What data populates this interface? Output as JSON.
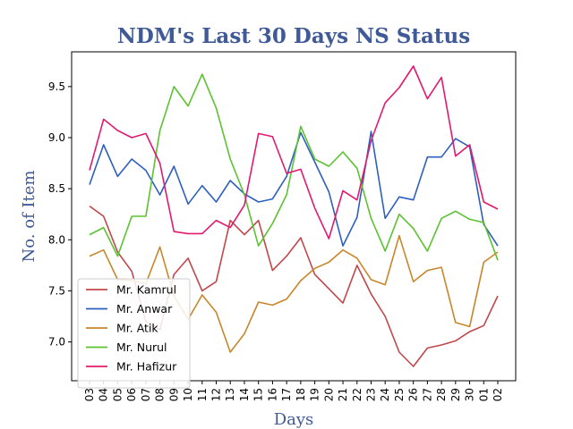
{
  "chart_data": {
    "type": "line",
    "title": "NDM's Last 30 Days NS Status",
    "xlabel": "Days",
    "ylabel": "No. of Item",
    "title_color": "#3f5a96",
    "categories": [
      "03",
      "04",
      "05",
      "06",
      "07",
      "08",
      "09",
      "10",
      "11",
      "12",
      "13",
      "14",
      "15",
      "16",
      "17",
      "18",
      "19",
      "20",
      "21",
      "22",
      "23",
      "24",
      "25",
      "26",
      "27",
      "28",
      "29",
      "30",
      "01",
      "02"
    ],
    "ylim": [
      6.62,
      9.84
    ],
    "yticks": [
      "7.0",
      "7.5",
      "8.0",
      "8.5",
      "9.0",
      "9.5"
    ],
    "legend_position": "lower-left",
    "series": [
      {
        "name": "Mr. Kamrul",
        "color": "#c0474a",
        "values": [
          8.33,
          8.23,
          7.88,
          7.69,
          7.2,
          7.12,
          7.66,
          7.82,
          7.5,
          7.59,
          8.19,
          8.05,
          8.19,
          7.7,
          7.84,
          8.02,
          7.66,
          7.52,
          7.38,
          7.75,
          7.47,
          7.25,
          6.9,
          6.76,
          6.94,
          6.97,
          7.01,
          7.1,
          7.16,
          7.45
        ]
      },
      {
        "name": "Mr. Anwar",
        "color": "#2d5fbf",
        "values": [
          8.54,
          8.93,
          8.62,
          8.79,
          8.68,
          8.44,
          8.72,
          8.35,
          8.53,
          8.37,
          8.58,
          8.45,
          8.37,
          8.4,
          8.62,
          9.05,
          8.76,
          8.47,
          7.94,
          8.22,
          9.06,
          8.21,
          8.42,
          8.39,
          8.81,
          8.81,
          8.99,
          8.91,
          8.15,
          7.94
        ]
      },
      {
        "name": "Mr. Atik",
        "color": "#c8862a",
        "values": [
          7.84,
          7.9,
          7.61,
          7.6,
          7.57,
          7.93,
          7.45,
          7.22,
          7.46,
          7.29,
          6.9,
          7.08,
          7.39,
          7.36,
          7.42,
          7.6,
          7.72,
          7.78,
          7.9,
          7.82,
          7.61,
          7.56,
          8.04,
          7.59,
          7.7,
          7.73,
          7.19,
          7.15,
          7.78,
          7.88
        ]
      },
      {
        "name": "Mr. Nurul",
        "color": "#5cc230",
        "values": [
          8.05,
          8.12,
          7.84,
          8.23,
          8.23,
          9.07,
          9.5,
          9.31,
          9.62,
          9.29,
          8.79,
          8.44,
          7.94,
          8.16,
          8.44,
          9.11,
          8.79,
          8.72,
          8.86,
          8.7,
          8.21,
          7.89,
          8.25,
          8.11,
          7.89,
          8.21,
          8.28,
          8.2,
          8.17,
          7.8
        ]
      },
      {
        "name": "Mr. Hafizur",
        "color": "#e2196e",
        "values": [
          8.68,
          9.18,
          9.07,
          9.0,
          9.04,
          8.75,
          8.08,
          8.06,
          8.06,
          8.19,
          8.12,
          8.34,
          9.04,
          9.01,
          8.65,
          8.69,
          8.31,
          8.01,
          8.48,
          8.39,
          8.97,
          9.34,
          9.49,
          9.7,
          9.38,
          9.59,
          8.82,
          8.93,
          8.37,
          8.3
        ]
      }
    ]
  }
}
